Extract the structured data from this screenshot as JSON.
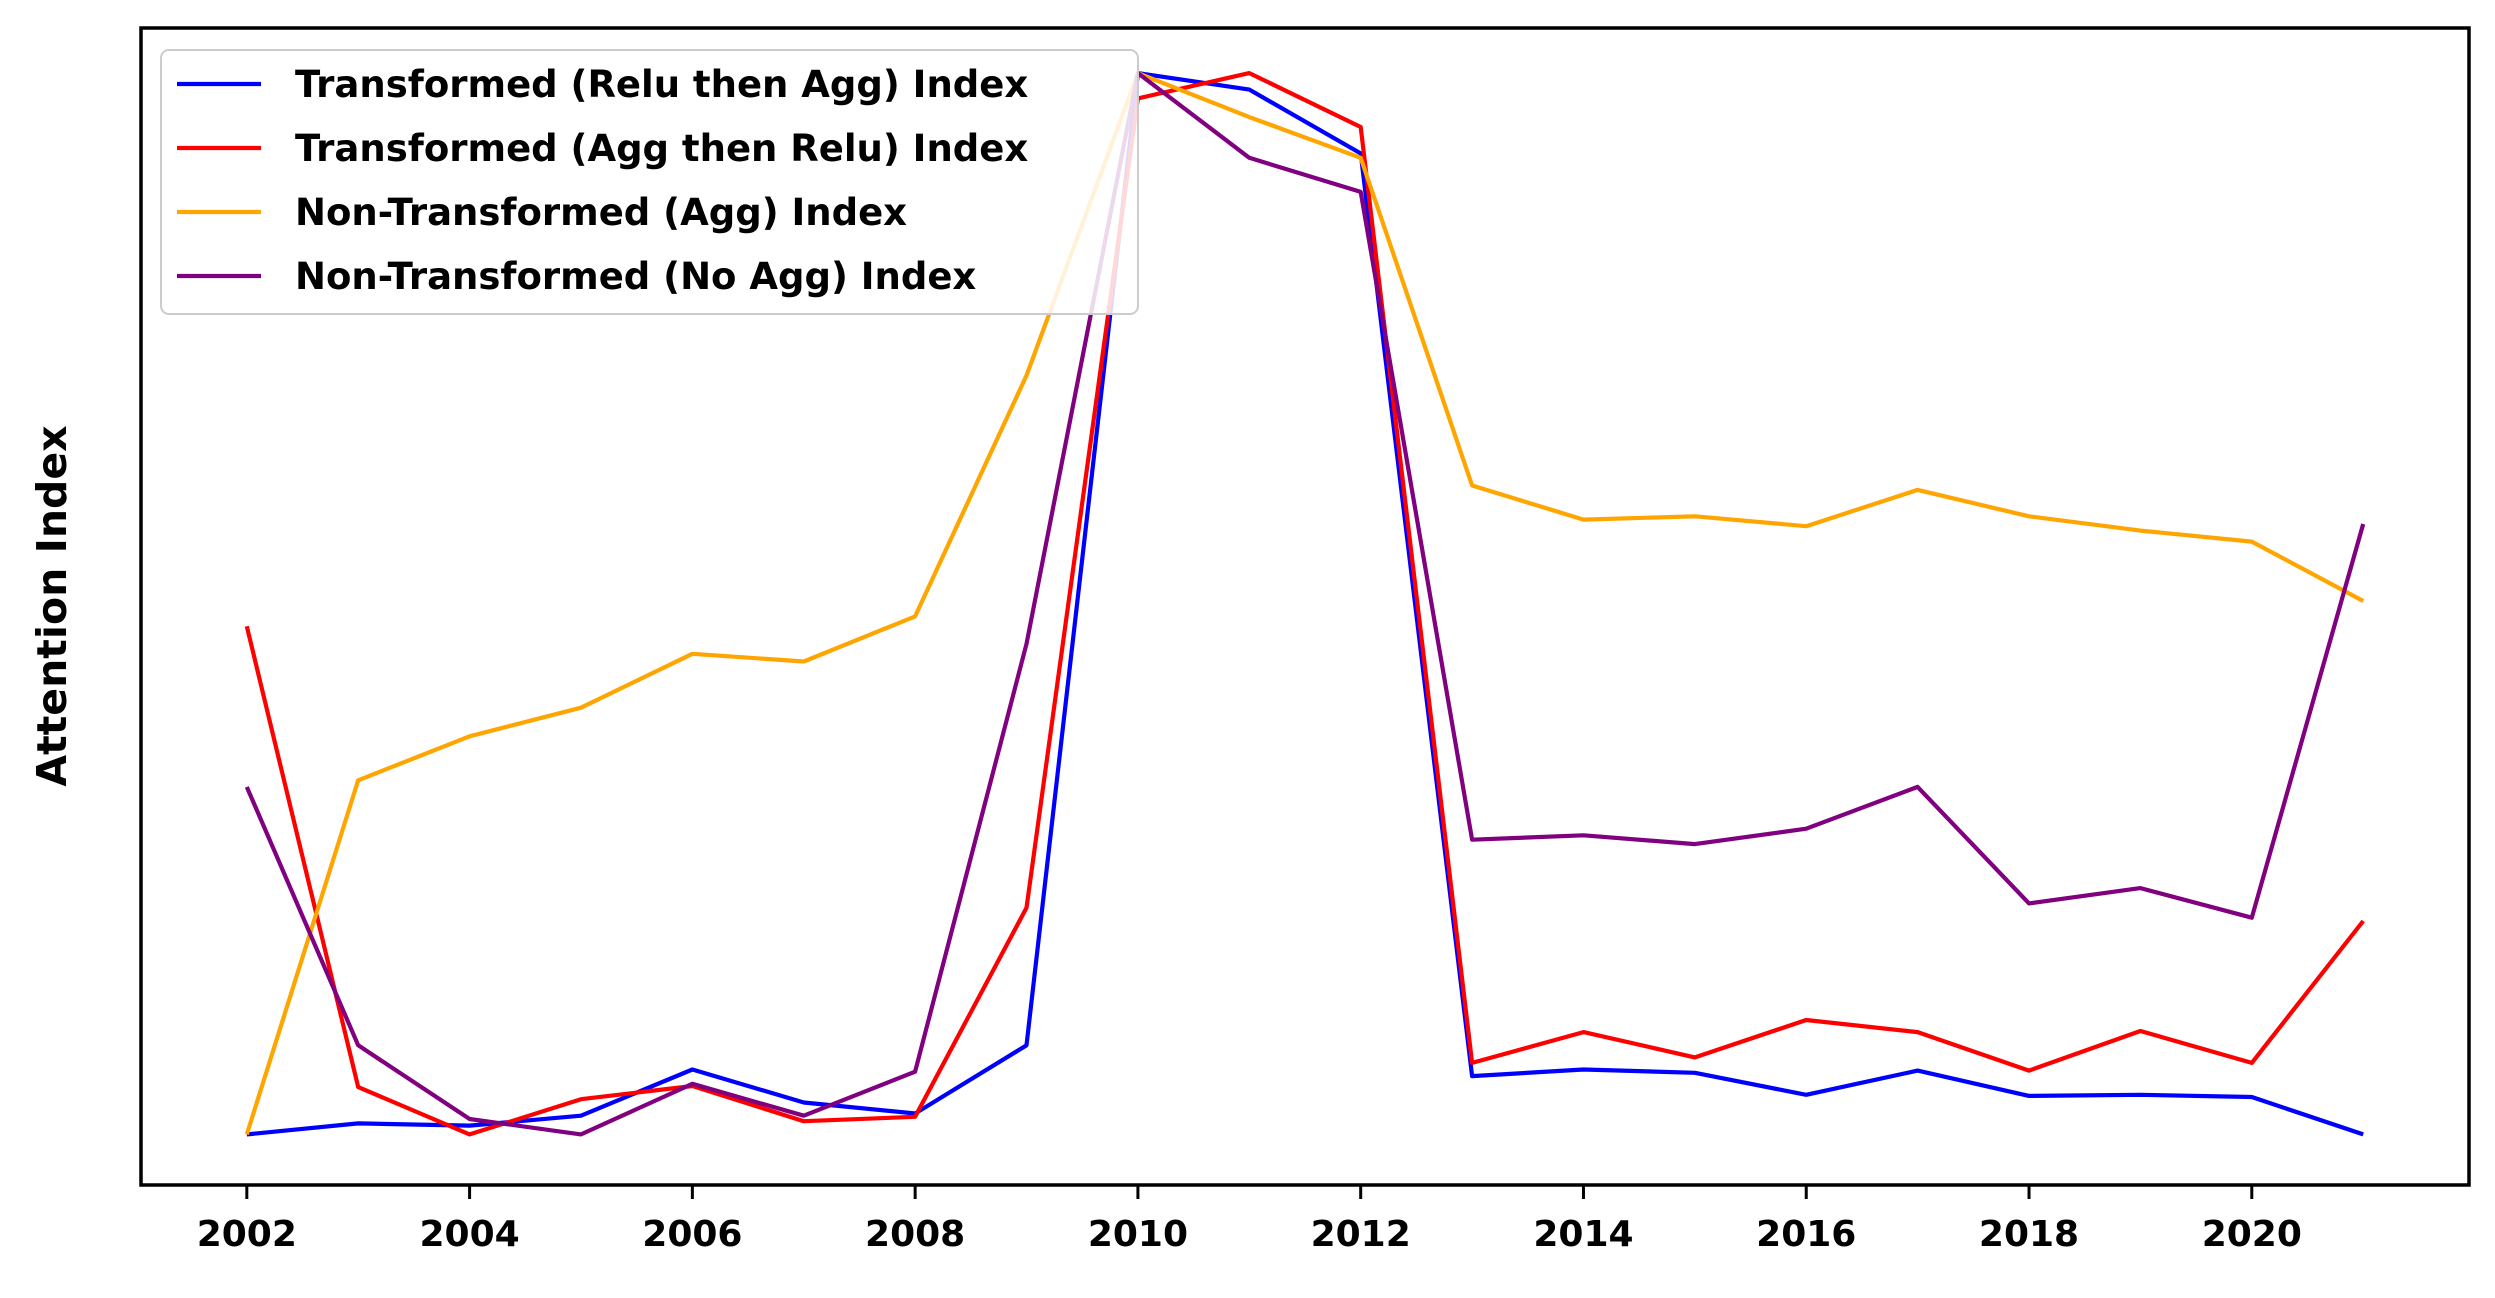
{
  "chart_data": {
    "type": "line",
    "title": "",
    "xlabel": "",
    "ylabel": "Attention Index",
    "x": [
      2002,
      2003,
      2004,
      2005,
      2006,
      2007,
      2008,
      2009,
      2010,
      2011,
      2012,
      2013,
      2014,
      2015,
      2016,
      2017,
      2018,
      2019,
      2020,
      2021
    ],
    "xticks": [
      "2002",
      "2004",
      "2006",
      "2008",
      "2010",
      "2012",
      "2014",
      "2016",
      "2018",
      "2020"
    ],
    "xlim": [
      2001.05,
      2021.95
    ],
    "ylim": [
      -0.046,
      1.006
    ],
    "y_ticks_shown": false,
    "grid": false,
    "legend_position": "upper-left",
    "series": [
      {
        "name": "Transformed (Relu then Agg) Index",
        "color": "#0000ff",
        "values": [
          0.0,
          0.01,
          0.008,
          0.017,
          0.059,
          0.029,
          0.019,
          0.081,
          0.965,
          0.95,
          0.892,
          0.053,
          0.059,
          0.056,
          0.036,
          0.058,
          0.035,
          0.036,
          0.034,
          0.0
        ]
      },
      {
        "name": "Transformed (Agg then Relu) Index",
        "color": "#ff0000",
        "values": [
          0.462,
          0.043,
          0.0,
          0.032,
          0.044,
          0.012,
          0.016,
          0.206,
          0.942,
          0.965,
          0.916,
          0.065,
          0.093,
          0.07,
          0.104,
          0.093,
          0.058,
          0.094,
          0.065,
          0.194
        ]
      },
      {
        "name": "Non-Transformed (Agg) Index",
        "color": "#ffa500",
        "values": [
          0.0,
          0.322,
          0.362,
          0.388,
          0.437,
          0.43,
          0.471,
          0.69,
          0.965,
          0.925,
          0.888,
          0.59,
          0.559,
          0.562,
          0.553,
          0.586,
          0.562,
          0.549,
          0.539,
          0.485
        ]
      },
      {
        "name": "Non-Transformed (No Agg) Index",
        "color": "#800080",
        "values": [
          0.316,
          0.081,
          0.014,
          0.0,
          0.046,
          0.017,
          0.057,
          0.446,
          0.965,
          0.888,
          0.857,
          0.268,
          0.272,
          0.264,
          0.278,
          0.316,
          0.21,
          0.224,
          0.197,
          0.555
        ]
      }
    ]
  }
}
